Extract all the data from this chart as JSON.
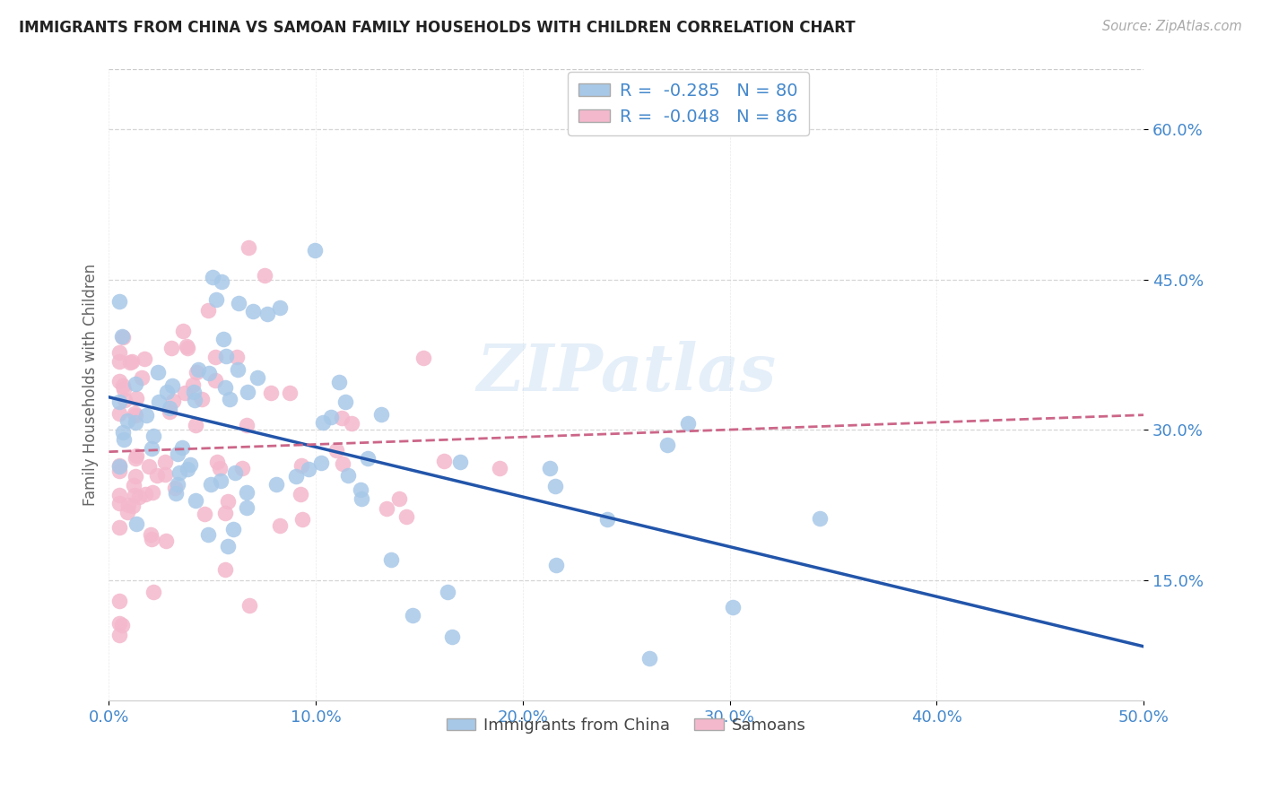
{
  "title": "IMMIGRANTS FROM CHINA VS SAMOAN FAMILY HOUSEHOLDS WITH CHILDREN CORRELATION CHART",
  "source": "Source: ZipAtlas.com",
  "ylabel": "Family Households with Children",
  "china_color": "#a8c8e8",
  "samoan_color": "#f4b8cc",
  "china_line_color": "#2255aa",
  "samoan_line_color": "#cc6688",
  "samoan_line_style": "dashed",
  "title_color": "#222222",
  "axis_tick_color": "#4488cc",
  "ylabel_color": "#666666",
  "background_color": "#ffffff",
  "watermark": "ZIPatlas",
  "watermark_color": "#aaccee",
  "watermark_alpha": 0.3,
  "china_R": -0.285,
  "china_N": 80,
  "samoan_R": -0.048,
  "samoan_N": 86,
  "xlim": [
    0.0,
    0.5
  ],
  "ylim": [
    0.03,
    0.66
  ],
  "x_ticks": [
    0.0,
    0.1,
    0.2,
    0.3,
    0.4,
    0.5
  ],
  "x_tick_labels": [
    "0.0%",
    "10.0%",
    "20.0%",
    "30.0%",
    "40.0%",
    "50.0%"
  ],
  "y_ticks": [
    0.15,
    0.3,
    0.45,
    0.6
  ],
  "y_tick_labels": [
    "15.0%",
    "30.0%",
    "45.0%",
    "60.0%"
  ],
  "grid_color": "#cccccc",
  "legend_text_color": "#333333",
  "legend_value_color": "#4488cc",
  "legend_label1": "R =  -0.285   N = 80",
  "legend_label2": "R =  -0.048   N = 86",
  "bottom_legend1": "Immigrants from China",
  "bottom_legend2": "Samoans"
}
